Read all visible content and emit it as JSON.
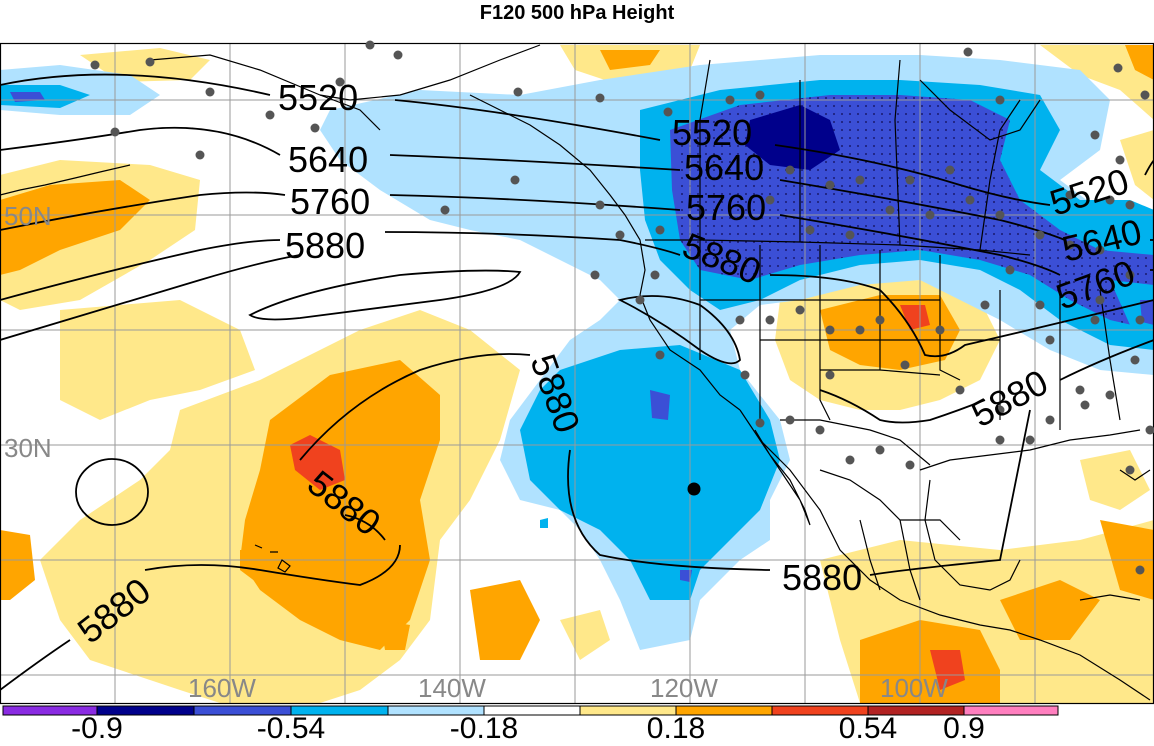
{
  "title": "F120 500 hPa Height",
  "lat_labels": [
    "50N",
    "30N"
  ],
  "lon_labels": [
    "160W",
    "140W",
    "120W",
    "100W"
  ],
  "contour_labels": [
    "5520",
    "5640",
    "5760",
    "5880"
  ],
  "colorbar": {
    "colors": [
      "#8a2be2",
      "#00008b",
      "#3b4fd6",
      "#00b2ee",
      "#b0e2ff",
      "#ffffff",
      "#ffe88a",
      "#ffa500",
      "#f0421e",
      "#b22222",
      "#ff7fbf"
    ],
    "tick_labels": [
      "-0.9",
      "-0.54",
      "-0.18",
      "0.18",
      "0.54",
      "0.9"
    ]
  },
  "colors": {
    "grid": "#9a9a9a",
    "grid_label": "#888888",
    "station_dot": "#555555",
    "target_dot": "#000000",
    "contour": "#000000",
    "border": "#000000"
  }
}
